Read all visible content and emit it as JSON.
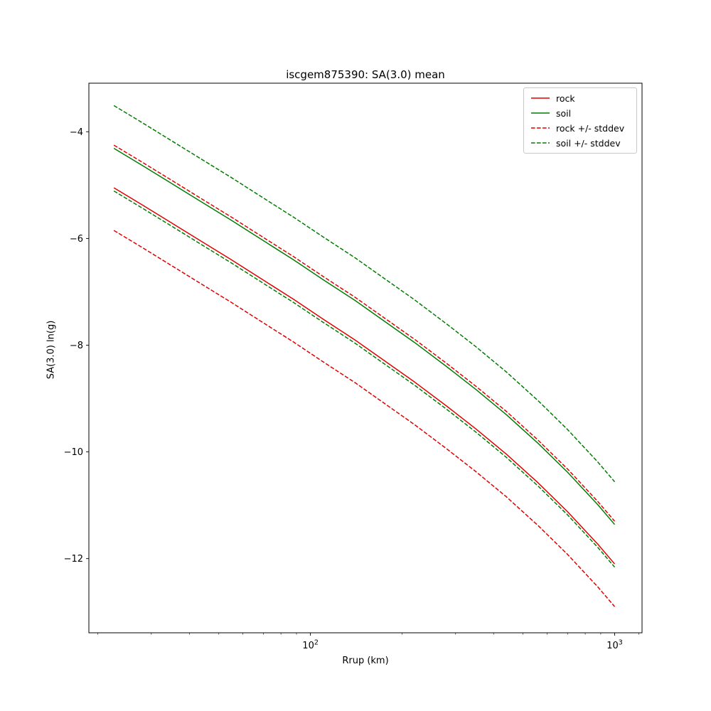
{
  "figure": {
    "title": "iscgem875390: SA(3.0) mean",
    "xlabel": "Rrup (km)",
    "ylabel": "SA(3.0) ln(g)",
    "background": "#ffffff"
  },
  "legend": {
    "position": "upper right",
    "entries": [
      {
        "label": "rock",
        "color": "#e00000",
        "style": "solid"
      },
      {
        "label": "soil",
        "color": "#007d00",
        "style": "solid"
      },
      {
        "label": "rock +/- stddev",
        "color": "#e00000",
        "style": "dashed"
      },
      {
        "label": "soil +/- stddev",
        "color": "#007d00",
        "style": "dashed"
      }
    ]
  },
  "chart_data": {
    "type": "line",
    "title": "iscgem875390: SA(3.0) mean",
    "xlabel": "Rrup (km)",
    "ylabel": "SA(3.0) ln(g)",
    "xscale": "log",
    "grid": false,
    "legend_position": "upper right",
    "xlim": [
      18.7,
      1230
    ],
    "ylim": [
      -13.39,
      -3.09
    ],
    "xticks": [
      {
        "value": 100,
        "label": "10^2"
      },
      {
        "value": 1000,
        "label": "10^3"
      }
    ],
    "xticks_minor": [
      20,
      30,
      40,
      50,
      60,
      70,
      80,
      90,
      200,
      300,
      400,
      500,
      600,
      700,
      800,
      900,
      1200
    ],
    "yticks": [
      -4,
      -6,
      -8,
      -10,
      -12
    ],
    "x": [
      22.6,
      28,
      35,
      44,
      55,
      70,
      88,
      110,
      140,
      175,
      220,
      280,
      350,
      440,
      560,
      700,
      880,
      1000
    ],
    "stddev": 0.8,
    "series": [
      {
        "name": "rock",
        "color": "#e00000",
        "style": "solid",
        "values": [
          -5.05,
          -5.37,
          -5.71,
          -6.06,
          -6.4,
          -6.78,
          -7.14,
          -7.51,
          -7.9,
          -8.29,
          -8.69,
          -9.14,
          -9.57,
          -10.04,
          -10.58,
          -11.12,
          -11.73,
          -12.1
        ]
      },
      {
        "name": "soil",
        "color": "#007d00",
        "style": "solid",
        "values": [
          -4.31,
          -4.63,
          -4.97,
          -5.32,
          -5.66,
          -6.04,
          -6.4,
          -6.77,
          -7.16,
          -7.55,
          -7.95,
          -8.4,
          -8.83,
          -9.3,
          -9.84,
          -10.38,
          -10.99,
          -11.36
        ]
      },
      {
        "name": "rock +/- stddev",
        "color": "#e00000",
        "style": "dashed",
        "values_plus": [
          -4.25,
          -4.57,
          -4.91,
          -5.26,
          -5.6,
          -5.98,
          -6.34,
          -6.71,
          -7.1,
          -7.49,
          -7.89,
          -8.34,
          -8.77,
          -9.24,
          -9.78,
          -10.32,
          -10.93,
          -11.3
        ],
        "values_minus": [
          -5.85,
          -6.17,
          -6.51,
          -6.86,
          -7.2,
          -7.58,
          -7.94,
          -8.31,
          -8.7,
          -9.09,
          -9.49,
          -9.94,
          -10.37,
          -10.84,
          -11.38,
          -11.92,
          -12.53,
          -12.9
        ]
      },
      {
        "name": "soil +/- stddev",
        "color": "#007d00",
        "style": "dashed",
        "values_plus": [
          -3.51,
          -3.83,
          -4.17,
          -4.52,
          -4.86,
          -5.24,
          -5.6,
          -5.97,
          -6.36,
          -6.75,
          -7.15,
          -7.6,
          -8.03,
          -8.5,
          -9.04,
          -9.58,
          -10.19,
          -10.56
        ],
        "values_minus": [
          -5.11,
          -5.43,
          -5.77,
          -6.12,
          -6.46,
          -6.84,
          -7.2,
          -7.57,
          -7.96,
          -8.35,
          -8.75,
          -9.2,
          -9.63,
          -10.1,
          -10.64,
          -11.18,
          -11.79,
          -12.16
        ]
      }
    ]
  }
}
